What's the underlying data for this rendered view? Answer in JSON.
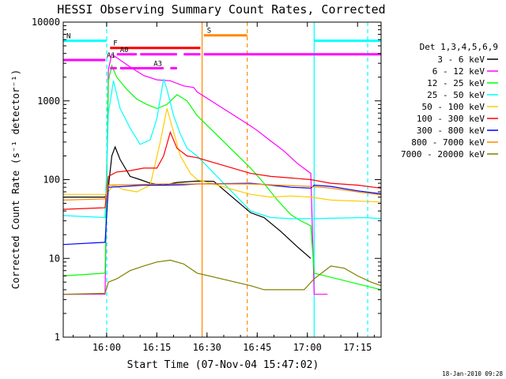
{
  "chart_data": {
    "type": "line",
    "title": "HESSI Observing Summary Count Rates, Corrected",
    "xlabel": "Start Time (07-Nov-04 15:47:02)",
    "ylabel": "Corrected Count Rate (s⁻¹ detector⁻¹)",
    "x_unit": "minutes since 15:47:02",
    "xlim": [
      0,
      95
    ],
    "ylim": [
      1,
      10000
    ],
    "yscale": "log",
    "x_tick_labels": [
      "16:00",
      "16:15",
      "16:30",
      "16:45",
      "17:00",
      "17:15"
    ],
    "x_tick_positions": [
      12.97,
      27.97,
      42.97,
      57.97,
      72.97,
      87.97
    ],
    "y_tick_labels": [
      "1",
      "10",
      "100",
      "1000",
      "10000"
    ],
    "y_tick_values": [
      1,
      10,
      100,
      1000,
      10000
    ],
    "legend": {
      "title": "Det 1,3,4,5,6,9",
      "placement": "right"
    },
    "series": [
      {
        "name": "3 - 6 keV",
        "color": "#000000",
        "points": [
          [
            0,
            60
          ],
          [
            12.5,
            60
          ],
          [
            13.5,
            80
          ],
          [
            14.5,
            200
          ],
          [
            15.5,
            260
          ],
          [
            17,
            180
          ],
          [
            20,
            110
          ],
          [
            23,
            100
          ],
          [
            26,
            90
          ],
          [
            30,
            85
          ],
          [
            34,
            92
          ],
          [
            40,
            96
          ],
          [
            45,
            95
          ],
          [
            56,
            38
          ],
          [
            60,
            33
          ],
          [
            65,
            22
          ],
          [
            70,
            14
          ],
          [
            74,
            10
          ]
        ]
      },
      {
        "name": "6 - 12 keV",
        "color": "#ff00ff",
        "points": [
          [
            0,
            3.5
          ],
          [
            12.5,
            3.5
          ],
          [
            13.5,
            2500
          ],
          [
            14.5,
            3900
          ],
          [
            17,
            3300
          ],
          [
            20,
            2700
          ],
          [
            24,
            2100
          ],
          [
            28,
            1850
          ],
          [
            32,
            1800
          ],
          [
            36,
            1550
          ],
          [
            39,
            1480
          ],
          [
            40,
            1300
          ],
          [
            56,
            480
          ],
          [
            58,
            420
          ],
          [
            62,
            310
          ],
          [
            66,
            230
          ],
          [
            70,
            160
          ],
          [
            74,
            120
          ],
          [
            75,
            3.5
          ],
          [
            78,
            3.5
          ],
          [
            79,
            3.5
          ]
        ]
      },
      {
        "name": "12 - 25 keV",
        "color": "#00ff00",
        "points": [
          [
            0,
            6
          ],
          [
            12.5,
            6.5
          ],
          [
            13.5,
            1800
          ],
          [
            14.5,
            2800
          ],
          [
            16,
            2000
          ],
          [
            19,
            1400
          ],
          [
            22,
            1050
          ],
          [
            25,
            900
          ],
          [
            28,
            800
          ],
          [
            31,
            900
          ],
          [
            34,
            1200
          ],
          [
            37,
            1000
          ],
          [
            40,
            650
          ],
          [
            56,
            140
          ],
          [
            60,
            90
          ],
          [
            64,
            55
          ],
          [
            68,
            36
          ],
          [
            71,
            30
          ],
          [
            74,
            26
          ],
          [
            75,
            6.5
          ],
          [
            95,
            4
          ]
        ]
      },
      {
        "name": "25 - 50 keV",
        "color": "#00ffff",
        "points": [
          [
            0,
            35
          ],
          [
            12.5,
            33
          ],
          [
            13.5,
            700
          ],
          [
            15,
            1800
          ],
          [
            17,
            800
          ],
          [
            20,
            450
          ],
          [
            23,
            280
          ],
          [
            26,
            320
          ],
          [
            28,
            600
          ],
          [
            30,
            1900
          ],
          [
            31,
            1400
          ],
          [
            33,
            650
          ],
          [
            35,
            380
          ],
          [
            37,
            250
          ],
          [
            40,
            200
          ],
          [
            56,
            40
          ],
          [
            62,
            33
          ],
          [
            68,
            32
          ],
          [
            74,
            32
          ],
          [
            75,
            32
          ],
          [
            90,
            33
          ],
          [
            95,
            32
          ]
        ]
      },
      {
        "name": "50 - 100 keV",
        "color": "#ffcc00",
        "points": [
          [
            0,
            65
          ],
          [
            12.5,
            65
          ],
          [
            13.5,
            70
          ],
          [
            15,
            85
          ],
          [
            18,
            75
          ],
          [
            22,
            70
          ],
          [
            26,
            85
          ],
          [
            29,
            300
          ],
          [
            31,
            800
          ],
          [
            33,
            400
          ],
          [
            35,
            200
          ],
          [
            38,
            120
          ],
          [
            40,
            100
          ],
          [
            56,
            65
          ],
          [
            62,
            60
          ],
          [
            68,
            62
          ],
          [
            74,
            60
          ],
          [
            80,
            55
          ],
          [
            95,
            52
          ]
        ]
      },
      {
        "name": "100 - 300 keV",
        "color": "#ff0000",
        "points": [
          [
            0,
            42
          ],
          [
            12.5,
            44
          ],
          [
            13.5,
            110
          ],
          [
            16,
            125
          ],
          [
            20,
            130
          ],
          [
            24,
            140
          ],
          [
            28,
            140
          ],
          [
            30,
            200
          ],
          [
            32,
            400
          ],
          [
            34,
            250
          ],
          [
            37,
            200
          ],
          [
            40,
            190
          ],
          [
            56,
            120
          ],
          [
            62,
            110
          ],
          [
            68,
            105
          ],
          [
            74,
            100
          ],
          [
            80,
            90
          ],
          [
            88,
            85
          ],
          [
            95,
            78
          ]
        ]
      },
      {
        "name": "300 - 800 keV",
        "color": "#0000ff",
        "points": [
          [
            0,
            15
          ],
          [
            12.5,
            16
          ],
          [
            13.5,
            80
          ],
          [
            18,
            82
          ],
          [
            24,
            85
          ],
          [
            30,
            85
          ],
          [
            36,
            86
          ],
          [
            40,
            88
          ],
          [
            56,
            90
          ],
          [
            62,
            85
          ],
          [
            68,
            80
          ],
          [
            74,
            78
          ],
          [
            75,
            85
          ],
          [
            80,
            82
          ],
          [
            88,
            72
          ],
          [
            95,
            66
          ]
        ]
      },
      {
        "name": "800 - 7000 keV",
        "color": "#ff8800",
        "points": [
          [
            0,
            55
          ],
          [
            12.5,
            57
          ],
          [
            13.5,
            85
          ],
          [
            18,
            86
          ],
          [
            24,
            87
          ],
          [
            30,
            88
          ],
          [
            36,
            88
          ],
          [
            40,
            88
          ],
          [
            56,
            88
          ],
          [
            62,
            86
          ],
          [
            68,
            84
          ],
          [
            74,
            82
          ],
          [
            80,
            78
          ],
          [
            88,
            70
          ],
          [
            95,
            64
          ]
        ]
      },
      {
        "name": "7000 - 20000 keV",
        "color": "#808000",
        "points": [
          [
            0,
            3.5
          ],
          [
            12.5,
            3.6
          ],
          [
            13.5,
            5
          ],
          [
            16,
            5.5
          ],
          [
            20,
            7
          ],
          [
            24,
            8
          ],
          [
            28,
            9
          ],
          [
            32,
            9.5
          ],
          [
            36,
            8.5
          ],
          [
            40,
            6.5
          ],
          [
            56,
            4.5
          ],
          [
            60,
            4
          ],
          [
            66,
            4
          ],
          [
            72,
            4
          ],
          [
            75,
            5.5
          ],
          [
            80,
            8
          ],
          [
            84,
            7.5
          ],
          [
            88,
            6
          ],
          [
            92,
            5
          ],
          [
            95,
            4.5
          ]
        ]
      }
    ],
    "annotations": {
      "vertical_lines": [
        {
          "x": 13.0,
          "color": "#00ffff",
          "style": "dashed"
        },
        {
          "x": 41.5,
          "color": "#ff8800",
          "style": "solid"
        },
        {
          "x": 55.0,
          "color": "#ff8800",
          "style": "dashed"
        },
        {
          "x": 75.0,
          "color": "#00ffff",
          "style": "solid"
        },
        {
          "x": 91.0,
          "color": "#00ffff",
          "style": "dashed"
        }
      ],
      "flag_bars": [
        {
          "label": "N",
          "color": "#00ffff",
          "y": 5800,
          "segments": [
            [
              0,
              13
            ],
            [
              75,
              95
            ]
          ]
        },
        {
          "label": "S",
          "color": "#ff8800",
          "y": 6800,
          "segments": [
            [
              42,
              55
            ]
          ]
        },
        {
          "label": "F",
          "color": "#ff0000",
          "y": 4700,
          "segments": [
            [
              14,
              41
            ]
          ]
        },
        {
          "label": "A1",
          "color": "#ff00ff",
          "y": 3300,
          "segments": [
            [
              0,
              12.6
            ]
          ]
        },
        {
          "label": "A0",
          "color": "#ff00ff",
          "y": 3900,
          "segments": [
            [
              16,
              22
            ],
            [
              23,
              34
            ],
            [
              36,
              41
            ],
            [
              42,
              95
            ]
          ]
        },
        {
          "label": "A3",
          "color": "#ff00ff",
          "y": 2600,
          "segments": [
            [
              14,
              16
            ],
            [
              17,
              30
            ],
            [
              32,
              34
            ]
          ]
        }
      ]
    }
  },
  "footer": {
    "timestamp": "18-Jan-2010 09:28"
  }
}
